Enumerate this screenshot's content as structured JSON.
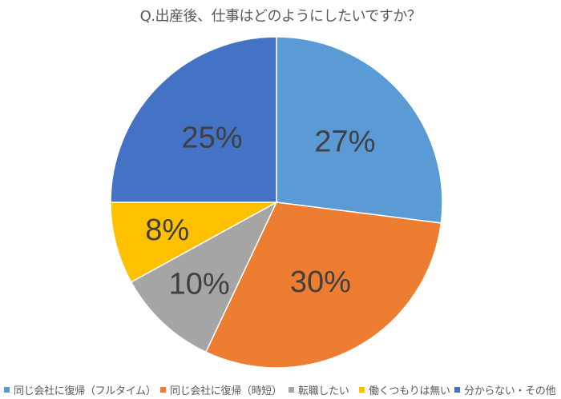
{
  "title": "Q.出産後、仕事はどのようにしたいですか？",
  "chart_data": {
    "type": "pie",
    "title": "Q.出産後、仕事はどのようにしたいですか？",
    "categories": [
      "同じ会社に復帰（フルタイム）",
      "同じ会社に復帰（時短）",
      "転職したい",
      "働くつもりは無い",
      "分からない・その他"
    ],
    "values": [
      27,
      30,
      10,
      8,
      25
    ],
    "labels": [
      "27%",
      "30%",
      "10%",
      "8%",
      "25%"
    ],
    "colors": [
      "#5B9BD5",
      "#ED7D31",
      "#A5A5A5",
      "#FFC000",
      "#4472C4"
    ],
    "start_angle_deg": 0,
    "direction": "clockwise",
    "legend_position": "bottom",
    "data_label_color": "#404040"
  },
  "legend": {
    "items": [
      {
        "label": "同じ会社に復帰（フルタイム）",
        "color": "#5B9BD5"
      },
      {
        "label": "同じ会社に復帰（時短）",
        "color": "#ED7D31"
      },
      {
        "label": "転職したい",
        "color": "#A5A5A5"
      },
      {
        "label": "働くつもりは無い",
        "color": "#FFC000"
      },
      {
        "label": "分からない・その他",
        "color": "#4472C4"
      }
    ]
  }
}
